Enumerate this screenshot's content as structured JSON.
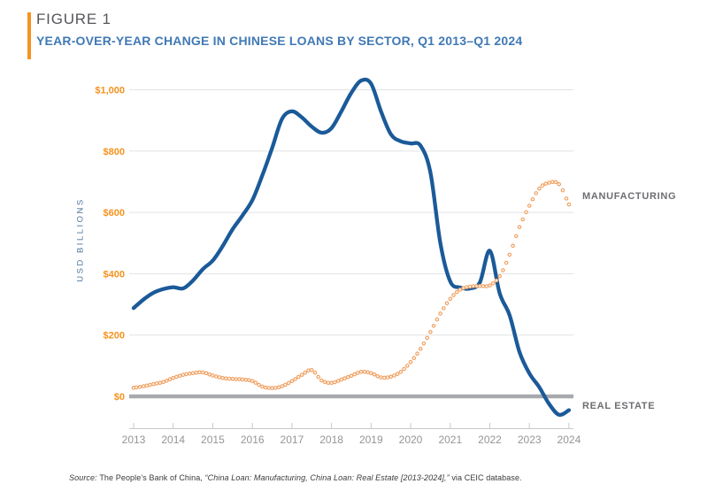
{
  "figure": {
    "label": "FIGURE 1",
    "title": "YEAR-OVER-YEAR CHANGE IN CHINESE LOANS BY SECTOR, Q1 2013–Q1 2024"
  },
  "source": {
    "prefix": "Source: ",
    "publisher": "The People’s Bank of China, ",
    "series_title": "“China Loan: Manufacturing, China Loan: Real Estate [2013-2024],”",
    "suffix": " via CEIC database."
  },
  "colors": {
    "accent_orange": "#f6921e",
    "title_blue": "#4079b4",
    "figure_label_gray": "#55565a",
    "grid_gray": "#e2e3e4",
    "zero_line_gray": "#a7a9ac",
    "axis_line_gray": "#c6c8ca",
    "x_label_gray": "#939598",
    "y_label_orange": "#f6921e",
    "series_label_gray": "#6d6e71",
    "y_axis_title_blue": "#50749a",
    "real_estate_blue": "#1b5a99",
    "manufacturing_orange": "#f0a264"
  },
  "chart_data": {
    "type": "line",
    "title": "Year-over-year change in Chinese loans by sector, Q1 2013–Q1 2024",
    "ylabel": "USD BILLIONS",
    "x_start": "Q1 2013",
    "x_end": "Q1 2024",
    "x_frequency": "quarterly",
    "x_tick_labels": [
      "2013",
      "2014",
      "2015",
      "2016",
      "2017",
      "2018",
      "2019",
      "2020",
      "2021",
      "2022",
      "2023",
      "2024"
    ],
    "y_tick_labels": [
      "$0",
      "$200",
      "$400",
      "$600",
      "$800",
      "$1,000"
    ],
    "y_tick_values": [
      0,
      200,
      400,
      600,
      800,
      1000
    ],
    "ylim": [
      -100,
      1060
    ],
    "grid": "horizontal",
    "legend_position": "right-edge-labels",
    "units": "USD billions",
    "series": [
      {
        "name": "REAL ESTATE",
        "color": "#1b5a99",
        "style": "solid",
        "marker": "none",
        "values": [
          288,
          316,
          338,
          350,
          356,
          352,
          378,
          415,
          443,
          490,
          545,
          590,
          640,
          720,
          810,
          905,
          930,
          910,
          880,
          860,
          875,
          930,
          990,
          1030,
          1020,
          930,
          855,
          832,
          825,
          818,
          730,
          500,
          375,
          355,
          352,
          372,
          475,
          336,
          265,
          145,
          75,
          30,
          -25,
          -60,
          -45
        ]
      },
      {
        "name": "MANUFACTURING",
        "color": "#f0a264",
        "style": "open-circle-markers",
        "marker": "circle",
        "values": [
          28,
          33,
          40,
          47,
          60,
          70,
          76,
          78,
          68,
          60,
          57,
          55,
          50,
          32,
          27,
          33,
          50,
          70,
          86,
          52,
          44,
          55,
          67,
          80,
          76,
          62,
          64,
          80,
          112,
          155,
          210,
          270,
          318,
          348,
          358,
          360,
          362,
          392,
          462,
          552,
          622,
          678,
          697,
          692,
          626
        ]
      }
    ]
  }
}
